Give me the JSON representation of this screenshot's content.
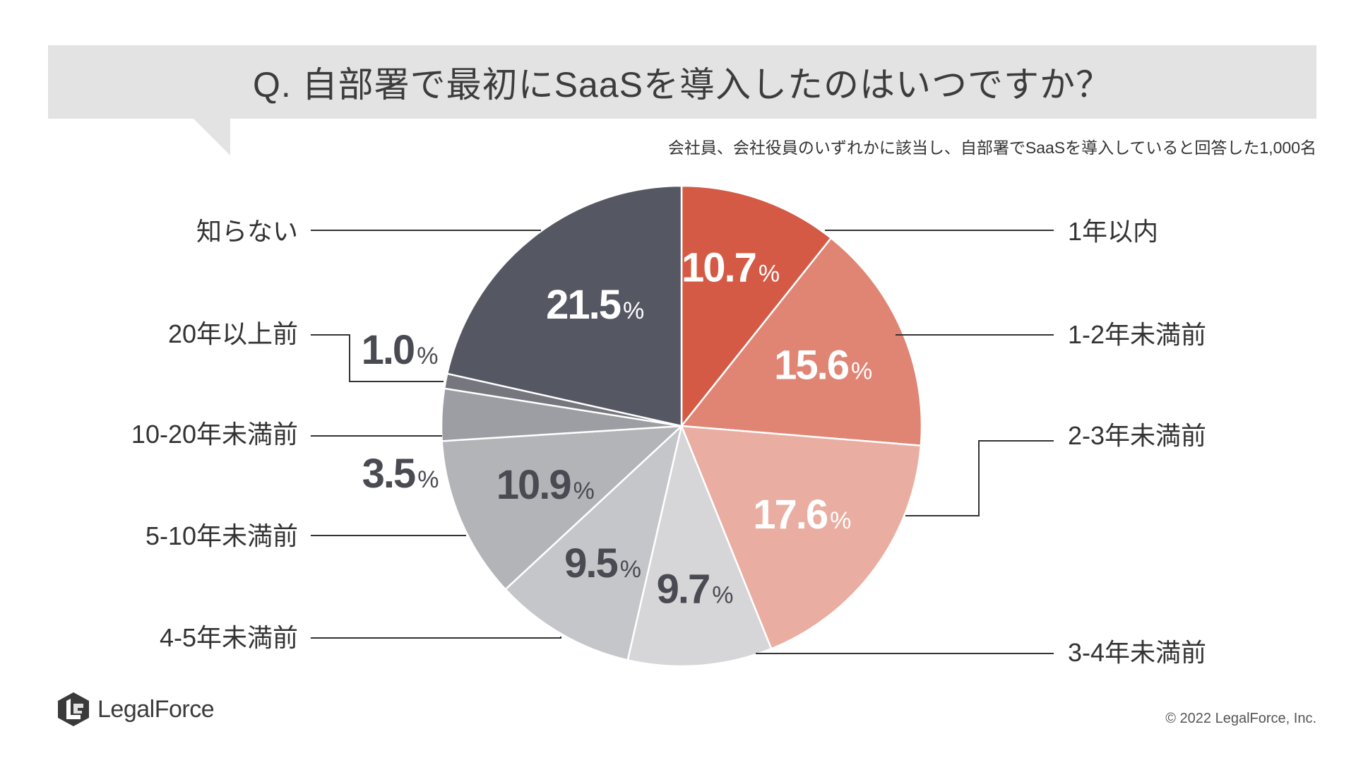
{
  "header": {
    "title": "Q. 自部署で最初にSaaSを導入したのはいつですか？",
    "note": "会社員、会社役員のいずれかに該当し、自部署でSaaSを導入していると回答した1,000名"
  },
  "chart_data": {
    "type": "pie",
    "start": "12 o'clock, clockwise",
    "unit": "%",
    "slices": [
      {
        "label": "1年以内",
        "value": 10.7,
        "value_text": "10.7",
        "color": "#d45a45",
        "value_color": "#ffffff"
      },
      {
        "label": "1-2年未満前",
        "value": 15.6,
        "value_text": "15.6",
        "color": "#e08474",
        "value_color": "#ffffff"
      },
      {
        "label": "2-3年未満前",
        "value": 17.6,
        "value_text": "17.6",
        "color": "#eaada2",
        "value_color": "#ffffff"
      },
      {
        "label": "3-4年未満前",
        "value": 9.7,
        "value_text": "9.7",
        "color": "#d6d6d9",
        "value_color": "#4a4a52"
      },
      {
        "label": "4-5年未満前",
        "value": 9.5,
        "value_text": "9.5",
        "color": "#c5c6ca",
        "value_color": "#4a4a52"
      },
      {
        "label": "5-10年未満前",
        "value": 10.9,
        "value_text": "10.9",
        "color": "#b3b4b8",
        "value_color": "#4a4a52"
      },
      {
        "label": "10-20年未満前",
        "value": 3.5,
        "value_text": "3.5",
        "color": "#9d9ea3",
        "value_color": "#4a4a52"
      },
      {
        "label": "20年以上前",
        "value": 1.0,
        "value_text": "1.0",
        "color": "#76777e",
        "value_color": "#4a4a52"
      },
      {
        "label": "知らない",
        "value": 21.5,
        "value_text": "21.5",
        "color": "#555762",
        "value_color": "#ffffff"
      }
    ]
  },
  "footer": {
    "brand": "LegalForce",
    "copyright": "© 2022 LegalForce, Inc."
  }
}
